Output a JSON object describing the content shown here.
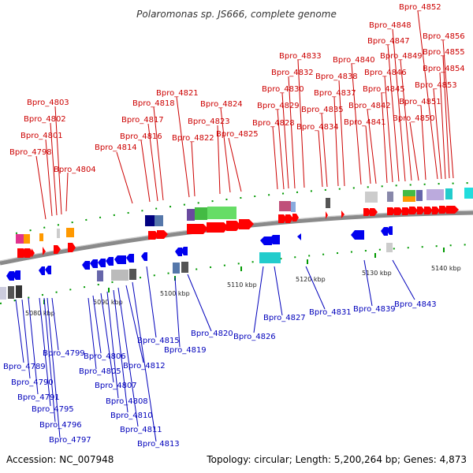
{
  "title": "Polaromonas sp. JS666, complete genome",
  "accession_label": "Accession: NC_007948",
  "topology_label": "Topology: circular; Length: 5,200,264 bp; Genes: 4,873",
  "ticks": [
    "5080 kbp",
    "5090 kbp",
    "5100 kbp",
    "5110 kbp",
    "5120 kbp",
    "5130 kbp",
    "5140 kbp"
  ],
  "top_labels": [
    "Bpro_4798",
    "Bpro_4801",
    "Bpro_4802",
    "Bpro_4803",
    "Bpro_4804",
    "Bpro_4814",
    "Bpro_4816",
    "Bpro_4817",
    "Bpro_4818",
    "Bpro_4821",
    "Bpro_4822",
    "Bpro_4823",
    "Bpro_4824",
    "Bpro_4825",
    "Bpro_4828",
    "Bpro_4829",
    "Bpro_4830",
    "Bpro_4832",
    "Bpro_4833",
    "Bpro_4834",
    "Bpro_4835",
    "Bpro_4837",
    "Bpro_4838",
    "Bpro_4840",
    "Bpro_4841",
    "Bpro_4842",
    "Bpro_4845",
    "Bpro_4846",
    "Bpro_4847",
    "Bpro_4848",
    "Bpro_4849",
    "Bpro_4850",
    "Bpro_4851",
    "Bpro_4852",
    "Bpro_4853",
    "Bpro_4854",
    "Bpro_4855",
    "Bpro_4856"
  ],
  "bottom_labels": [
    "Bpro_4789",
    "Bpro_4790",
    "Bpro_4791",
    "Bpro_4795",
    "Bpro_4796",
    "Bpro_4797",
    "Bpro_4799",
    "Bpro_4805",
    "Bpro_4806",
    "Bpro_4807",
    "Bpro_4808",
    "Bpro_4810",
    "Bpro_4811",
    "Bpro_4812",
    "Bpro_4813",
    "Bpro_4815",
    "Bpro_4819",
    "Bpro_4820",
    "Bpro_4826",
    "Bpro_4827",
    "Bpro_4831",
    "Bpro_4839",
    "Bpro_4843"
  ],
  "colors": {
    "forward_gene": "#ff0000",
    "reverse_gene": "#0000ee",
    "backbone": "#888888",
    "tick": "#009900"
  }
}
